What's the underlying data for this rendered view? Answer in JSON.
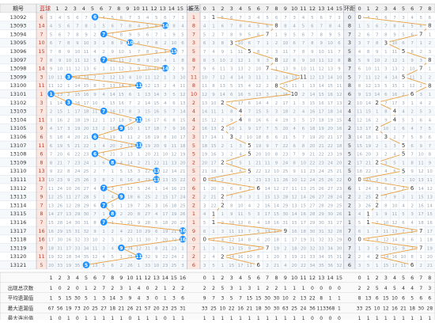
{
  "header": {
    "period": "期号",
    "blue": "蓝球",
    "amp": "振荡",
    "mod": "环距"
  },
  "blue_cols": [
    "1",
    "2",
    "3",
    "4",
    "5",
    "6",
    "7",
    "8",
    "9",
    "10",
    "11",
    "12",
    "13",
    "14",
    "15",
    "16"
  ],
  "amp_cols": [
    "0",
    "1",
    "2",
    "3",
    "4",
    "5",
    "6",
    "7",
    "8",
    "9",
    "10",
    "11",
    "12",
    "13",
    "14",
    "15"
  ],
  "mod_cols": [
    "0",
    "1",
    "2",
    "3",
    "4",
    "5",
    "6",
    "7",
    "8"
  ],
  "rows": [
    {
      "p": "13092",
      "blue": 6,
      "amp": 1,
      "mod": 0
    },
    {
      "p": "13093",
      "blue": 14,
      "amp": 8,
      "mod": 8
    },
    {
      "p": "13094",
      "blue": 7,
      "amp": 7,
      "mod": 7
    },
    {
      "p": "13095",
      "blue": 10,
      "amp": 3,
      "mod": 3
    },
    {
      "p": "13096",
      "blue": 15,
      "amp": 5,
      "mod": 5
    },
    {
      "p": "13097",
      "blue": 7,
      "amp": 8,
      "mod": 8
    },
    {
      "p": "13098",
      "blue": 14,
      "amp": 7,
      "mod": 7
    },
    {
      "p": "13099",
      "blue": 3,
      "amp": 11,
      "mod": 5
    },
    {
      "p": "13100",
      "blue": 11,
      "amp": 8,
      "mod": 8
    },
    {
      "p": "13101",
      "blue": 1,
      "amp": 10,
      "mod": 6
    },
    {
      "p": "13102",
      "blue": 3,
      "amp": 2,
      "mod": 2
    },
    {
      "p": "13103",
      "blue": 7,
      "amp": 4,
      "mod": 4
    },
    {
      "p": "13104",
      "blue": 11,
      "amp": 4,
      "mod": 4
    },
    {
      "p": "13105",
      "blue": 9,
      "amp": 2,
      "mod": 2
    },
    {
      "p": "13106",
      "blue": 6,
      "amp": 3,
      "mod": 3
    },
    {
      "p": "13107",
      "blue": 11,
      "amp": 5,
      "mod": 5
    },
    {
      "p": "13108",
      "blue": 6,
      "amp": 5,
      "mod": 5
    },
    {
      "p": "13109",
      "blue": 8,
      "amp": 2,
      "mod": 2
    },
    {
      "p": "13110",
      "blue": 13,
      "amp": 5,
      "mod": 5
    },
    {
      "p": "13111",
      "blue": 13,
      "amp": 0,
      "mod": 0
    },
    {
      "p": "13112",
      "blue": 7,
      "amp": 6,
      "mod": 6
    },
    {
      "p": "13113",
      "blue": 9,
      "amp": 2,
      "mod": 2
    },
    {
      "p": "13114",
      "blue": 7,
      "amp": 2,
      "mod": 2
    },
    {
      "p": "13115",
      "blue": 8,
      "amp": 1,
      "mod": 1
    },
    {
      "p": "13116",
      "blue": 7,
      "amp": 1,
      "mod": 1
    },
    {
      "p": "13117",
      "blue": 16,
      "amp": 9,
      "mod": 7
    },
    {
      "p": "13118",
      "blue": 16,
      "amp": 0,
      "mod": 0
    },
    {
      "p": "13119",
      "blue": 9,
      "amp": 7,
      "mod": 7
    },
    {
      "p": "13120",
      "blue": 11,
      "amp": 2,
      "mod": 2
    },
    {
      "p": "13121",
      "blue": 5,
      "amp": 6,
      "mod": 6
    }
  ],
  "stats": {
    "labels": [
      "出现总次数",
      "平均遗漏值",
      "最大遗漏值",
      "最大连出值"
    ],
    "blue": [
      [
        "1",
        "0",
        "2",
        "0",
        "1",
        "2",
        "7",
        "2",
        "3",
        "1",
        "4",
        "0",
        "2",
        "1",
        "2",
        "2"
      ],
      [
        "1",
        "5",
        "15",
        "30",
        "5",
        "1",
        "3",
        "14",
        "3",
        "9",
        "4",
        "3",
        "0",
        "1",
        "3",
        "6"
      ],
      [
        "67",
        "56",
        "19",
        "73",
        "20",
        "25",
        "27",
        "18",
        "21",
        "26",
        "21",
        "57",
        "20",
        "23",
        "25",
        "31"
      ],
      [
        "1",
        "0",
        "1",
        "0",
        "1",
        "1",
        "1",
        "1",
        "1",
        "0",
        "1",
        "1",
        "1",
        "0",
        "1",
        "1"
      ]
    ],
    "amp": [
      [
        "2",
        "2",
        "5",
        "3",
        "1",
        "3",
        "1",
        "2",
        "2",
        "1",
        "1",
        "1",
        "0",
        "0",
        "0",
        "0"
      ],
      [
        "9",
        "7",
        "3",
        "5",
        "7",
        "15",
        "15",
        "30",
        "30",
        "10",
        "2",
        "13",
        "22",
        "8",
        "1",
        "1"
      ],
      [
        "33",
        "25",
        "10",
        "22",
        "16",
        "21",
        "18",
        "30",
        "30",
        "63",
        "25",
        "24",
        "36",
        "113",
        "368",
        "1"
      ],
      [
        "1",
        "1",
        "1",
        "1",
        "1",
        "1",
        "1",
        "1",
        "1",
        "1",
        "1",
        "1",
        "0",
        "0",
        "0",
        "0"
      ]
    ],
    "mod": [
      [
        "2",
        "2",
        "5",
        "4",
        "5",
        "4",
        "4",
        "7",
        "3"
      ],
      [
        "8",
        "13",
        "6",
        "15",
        "10",
        "6",
        "5",
        "6",
        "6"
      ],
      [
        "33",
        "25",
        "10",
        "12",
        "16",
        "21",
        "18",
        "30",
        "28"
      ],
      [
        "1",
        "1",
        "1",
        "1",
        "1",
        "1",
        "1",
        "1",
        "1"
      ]
    ]
  },
  "colors": {
    "ball": "#1e90ff",
    "orange": "#e8a040",
    "pink": "#fce8e0",
    "header_bg": "#f0f0f0",
    "grid": "#cfd9e6"
  }
}
